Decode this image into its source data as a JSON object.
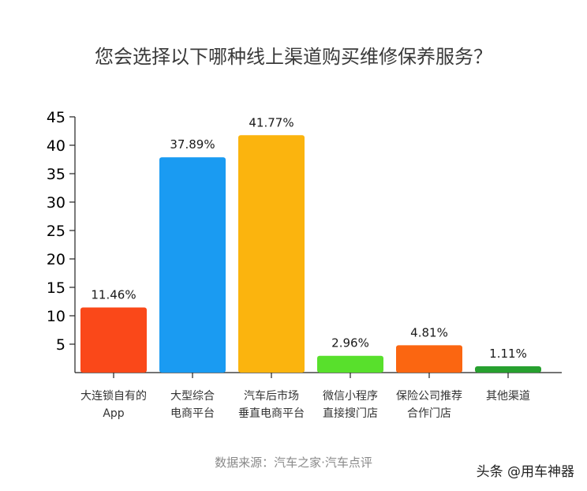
{
  "chart_data": {
    "type": "bar",
    "title": "您会选择以下哪种线上渠道购买维修保养服务？",
    "categories": [
      [
        "大连锁自有的",
        "App"
      ],
      [
        "大型综合",
        "电商平台"
      ],
      [
        "汽车后市场",
        "垂直电商平台"
      ],
      [
        "微信小程序",
        "直接搜门店"
      ],
      [
        "保险公司推荐",
        "合作门店"
      ],
      [
        "其他渠道"
      ]
    ],
    "values": [
      11.46,
      37.89,
      41.77,
      2.96,
      4.81,
      1.11
    ],
    "value_labels": [
      "11.46%",
      "37.89%",
      "41.77%",
      "2.96%",
      "4.81%",
      "1.11%"
    ],
    "colors": [
      "#fa4819",
      "#1a9bf2",
      "#fbb40e",
      "#58e02c",
      "#fb6611",
      "#27a02f"
    ],
    "ylim": [
      0,
      45
    ],
    "yticks": [
      5,
      10,
      15,
      20,
      25,
      30,
      35,
      40,
      45
    ],
    "xlabel": "",
    "ylabel": "",
    "grid": false,
    "legend": "none"
  },
  "source": "数据来源：汽车之家·汽车点评",
  "watermark": "头条 @用车神器"
}
